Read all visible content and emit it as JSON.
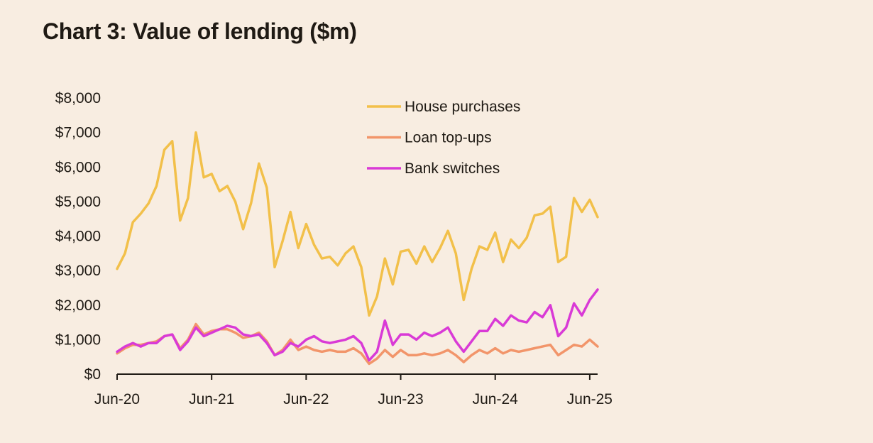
{
  "colors": {
    "background": "#F8EDE1",
    "house": "#F2C04A",
    "topups": "#F2956A",
    "switches": "#D93AD6",
    "axis": "#1f1a14"
  },
  "chart_data": {
    "type": "line",
    "title": "Chart 3: Value of lending ($m)",
    "xlabel": "",
    "ylabel": "",
    "ylim": [
      0,
      8000
    ],
    "y_ticks": [
      0,
      1000,
      2000,
      3000,
      4000,
      5000,
      6000,
      7000,
      8000
    ],
    "y_tick_labels": [
      "$0",
      "$1,000",
      "$2,000",
      "$3,000",
      "$4,000",
      "$5,000",
      "$6,000",
      "$7,000",
      "$8,000"
    ],
    "x_ticks": [
      0,
      12,
      24,
      36,
      48,
      60
    ],
    "x_tick_labels": [
      "Jun-20",
      "Jun-21",
      "Jun-22",
      "Jun-23",
      "Jun-24",
      "Jun-25"
    ],
    "x_range": [
      0,
      61
    ],
    "legend_position": "top-right",
    "series": [
      {
        "name": "House purchases",
        "color_key": "house",
        "values": [
          3050,
          3500,
          4400,
          4650,
          4950,
          5450,
          6500,
          6750,
          4450,
          5100,
          7000,
          5700,
          5800,
          5300,
          5450,
          5000,
          4200,
          4950,
          6100,
          5400,
          3100,
          3850,
          4700,
          3650,
          4350,
          3750,
          3350,
          3400,
          3150,
          3500,
          3700,
          3100,
          1700,
          2250,
          3350,
          2600,
          3550,
          3600,
          3200,
          3700,
          3250,
          3650,
          4150,
          3500,
          2150,
          3050,
          3700,
          3600,
          4100,
          3250,
          3900,
          3650,
          3950,
          4600,
          4650,
          4850,
          3250,
          3400,
          5100,
          4700,
          5050,
          4550
        ]
      },
      {
        "name": "Loan top-ups",
        "color_key": "topups",
        "values": [
          600,
          750,
          850,
          850,
          900,
          950,
          1100,
          1150,
          750,
          1000,
          1450,
          1150,
          1250,
          1300,
          1300,
          1200,
          1050,
          1100,
          1200,
          950,
          550,
          700,
          1000,
          700,
          800,
          700,
          650,
          700,
          650,
          650,
          750,
          600,
          300,
          450,
          700,
          500,
          700,
          550,
          550,
          600,
          550,
          600,
          700,
          550,
          350,
          550,
          700,
          600,
          750,
          600,
          700,
          650,
          700,
          750,
          800,
          850,
          550,
          700,
          850,
          800,
          1000,
          800
        ]
      },
      {
        "name": "Bank switches",
        "color_key": "switches",
        "values": [
          650,
          800,
          900,
          800,
          900,
          900,
          1100,
          1150,
          700,
          950,
          1350,
          1100,
          1200,
          1300,
          1400,
          1350,
          1150,
          1100,
          1150,
          900,
          550,
          650,
          900,
          800,
          1000,
          1100,
          950,
          900,
          950,
          1000,
          1100,
          900,
          400,
          650,
          1550,
          850,
          1150,
          1150,
          1000,
          1200,
          1100,
          1200,
          1350,
          950,
          650,
          950,
          1250,
          1250,
          1600,
          1400,
          1700,
          1550,
          1500,
          1800,
          1650,
          2000,
          1100,
          1350,
          2050,
          1700,
          2150,
          2450
        ]
      }
    ]
  }
}
